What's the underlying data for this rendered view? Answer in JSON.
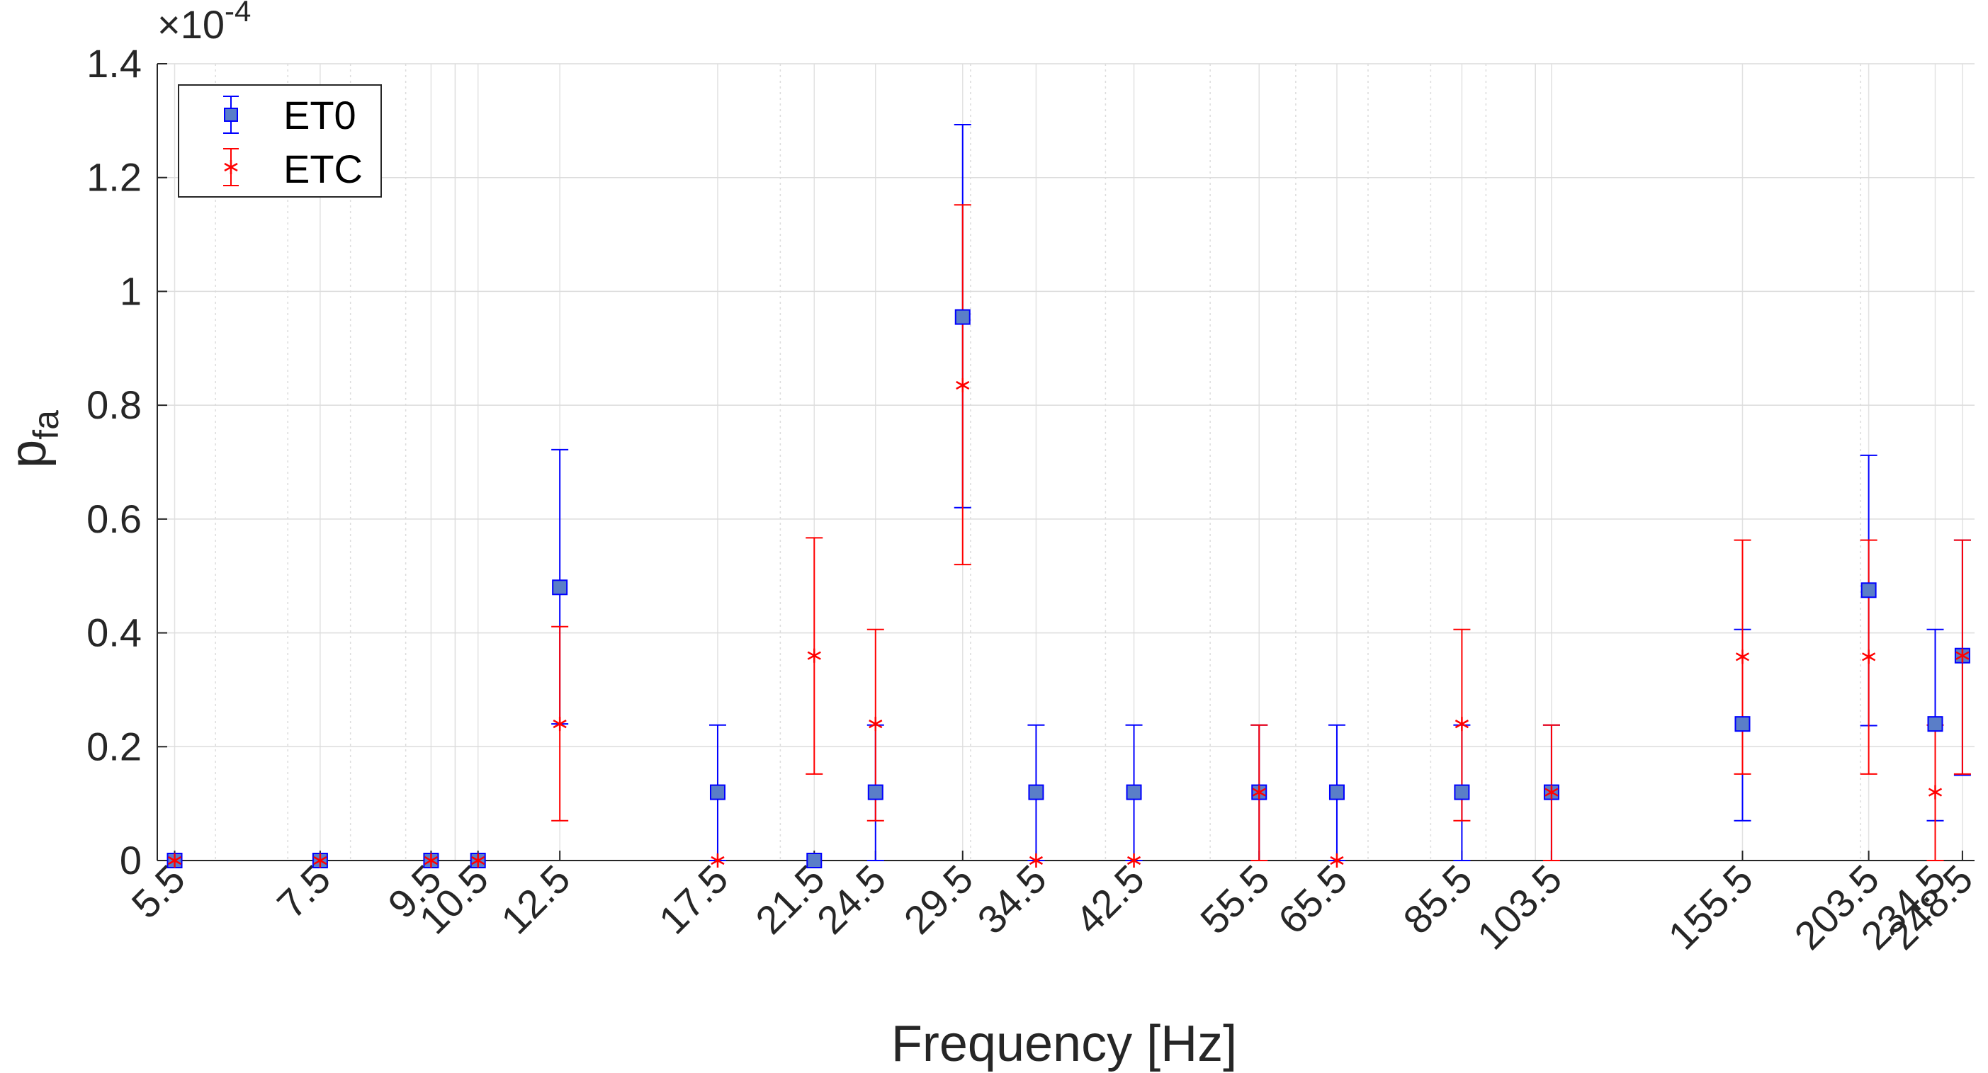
{
  "chart_data": {
    "type": "scatter",
    "title": "",
    "xlabel": "Frequency [Hz]",
    "ylabel_main": "p",
    "ylabel_sub": "fa",
    "exponent_base": "×10",
    "exponent_power": "-4",
    "x_scale": "log",
    "xlim": [
      5.3,
      255
    ],
    "ylim": [
      0,
      1.4
    ],
    "y_ticks": [
      "0",
      "0.2",
      "0.4",
      "0.6",
      "0.8",
      "1",
      "1.2",
      "1.4"
    ],
    "x": [
      5.5,
      7.5,
      9.5,
      10.5,
      12.5,
      17.5,
      21.5,
      24.5,
      29.5,
      34.5,
      42.5,
      55.5,
      65.5,
      85.5,
      103.5,
      155.5,
      203.5,
      234.5,
      248.5
    ],
    "x_tick_labels": [
      "5.5",
      "7.5",
      "9.5",
      "10.5",
      "12.5",
      "17.5",
      "21.5",
      "24.5",
      "29.5",
      "34.5",
      "42.5",
      "55.5",
      "65.5",
      "85.5",
      "103.5",
      "155.5",
      "203.5",
      "234.5",
      "248.5"
    ],
    "grid": true,
    "legend_position": "top-left",
    "series": [
      {
        "name": "ET0",
        "color": "#0000ff",
        "marker_fill": "#5a7ec8",
        "marker": "square",
        "values": [
          0,
          0,
          0,
          0,
          0.48,
          0.12,
          0,
          0.12,
          0.955,
          0.12,
          0.12,
          0.12,
          0.12,
          0.12,
          0.12,
          0.24,
          0.475,
          0.24,
          0.36
        ],
        "lower": [
          0,
          0,
          0,
          0,
          0.24,
          0,
          0,
          0,
          0.62,
          0,
          0,
          0,
          0,
          0,
          0,
          0.07,
          0.237,
          0.07,
          0.15
        ],
        "upper": [
          0,
          0,
          0,
          0,
          0.722,
          0.238,
          0,
          0.238,
          1.293,
          0.238,
          0.238,
          0.238,
          0.238,
          0.238,
          0.238,
          0.406,
          0.712,
          0.406,
          0.563
        ]
      },
      {
        "name": "ETC",
        "color": "#ff0000",
        "marker": "asterisk",
        "values": [
          0,
          0,
          0,
          0,
          0.24,
          0,
          0.36,
          0.24,
          0.835,
          0,
          0,
          0.12,
          0,
          0.24,
          0.12,
          0.358,
          0.358,
          0.12,
          0.36
        ],
        "lower": [
          0,
          0,
          0,
          0,
          0.07,
          0,
          0.152,
          0.07,
          0.52,
          0,
          0,
          0,
          0,
          0.07,
          0,
          0.152,
          0.152,
          0,
          0.152
        ],
        "upper": [
          0,
          0,
          0,
          0,
          0.411,
          0,
          0.567,
          0.406,
          1.152,
          0,
          0,
          0.238,
          0,
          0.406,
          0.238,
          0.563,
          0.563,
          0.238,
          0.563
        ]
      }
    ]
  }
}
